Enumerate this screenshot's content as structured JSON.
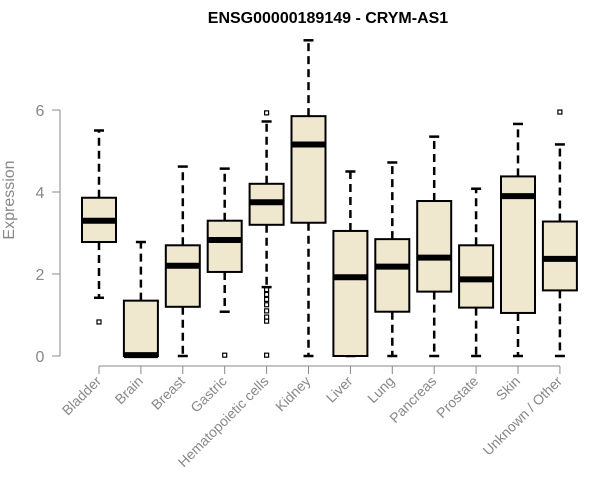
{
  "chart_data": {
    "type": "boxplot",
    "title": "ENSG00000189149 - CRYM-AS1",
    "xlabel": "",
    "ylabel": "Expression",
    "ylim": [
      0,
      7.7
    ],
    "yticks": [
      0,
      2,
      4,
      6
    ],
    "box_color": "#efe8cf",
    "categories": [
      "Bladder",
      "Brain",
      "Breast",
      "Gastric",
      "Hematopoietic cells",
      "Kidney",
      "Liver",
      "Lung",
      "Pancreas",
      "Prostate",
      "Skin",
      "Unknown / Other"
    ],
    "boxes": [
      {
        "label": "Bladder",
        "whisker_low": 1.42,
        "q1": 2.78,
        "median": 3.3,
        "q3": 3.86,
        "whisker_high": 5.5,
        "outliers": [
          0.83
        ]
      },
      {
        "label": "Brain",
        "whisker_low": 0.0,
        "q1": 0.0,
        "median": 0.02,
        "q3": 1.35,
        "whisker_high": 2.78,
        "outliers": []
      },
      {
        "label": "Breast",
        "whisker_low": 0.0,
        "q1": 1.2,
        "median": 2.2,
        "q3": 2.7,
        "whisker_high": 4.62,
        "outliers": []
      },
      {
        "label": "Gastric",
        "whisker_low": 1.08,
        "q1": 2.05,
        "median": 2.83,
        "q3": 3.3,
        "whisker_high": 4.57,
        "outliers": [
          0.02
        ]
      },
      {
        "label": "Hematopoietic cells",
        "whisker_low": 1.68,
        "q1": 3.2,
        "median": 3.75,
        "q3": 4.2,
        "whisker_high": 5.72,
        "outliers": [
          5.93,
          1.62,
          1.5,
          1.38,
          1.25,
          1.1,
          0.95,
          0.85,
          0.02
        ]
      },
      {
        "label": "Kidney",
        "whisker_low": 0.0,
        "q1": 3.25,
        "median": 5.16,
        "q3": 5.85,
        "whisker_high": 7.7,
        "outliers": []
      },
      {
        "label": "Liver",
        "whisker_low": 0.0,
        "q1": 0.0,
        "median": 1.92,
        "q3": 3.05,
        "whisker_high": 4.5,
        "outliers": []
      },
      {
        "label": "Lung",
        "whisker_low": 0.0,
        "q1": 1.08,
        "median": 2.18,
        "q3": 2.85,
        "whisker_high": 4.72,
        "outliers": []
      },
      {
        "label": "Pancreas",
        "whisker_low": 0.0,
        "q1": 1.57,
        "median": 2.4,
        "q3": 3.78,
        "whisker_high": 5.35,
        "outliers": []
      },
      {
        "label": "Prostate",
        "whisker_low": 0.0,
        "q1": 1.18,
        "median": 1.87,
        "q3": 2.7,
        "whisker_high": 4.08,
        "outliers": []
      },
      {
        "label": "Skin",
        "whisker_low": 0.0,
        "q1": 1.05,
        "median": 3.9,
        "q3": 4.38,
        "whisker_high": 5.66,
        "outliers": []
      },
      {
        "label": "Unknown / Other",
        "whisker_low": 0.0,
        "q1": 1.6,
        "median": 2.37,
        "q3": 3.28,
        "whisker_high": 5.16,
        "outliers": [
          5.95
        ]
      }
    ]
  }
}
